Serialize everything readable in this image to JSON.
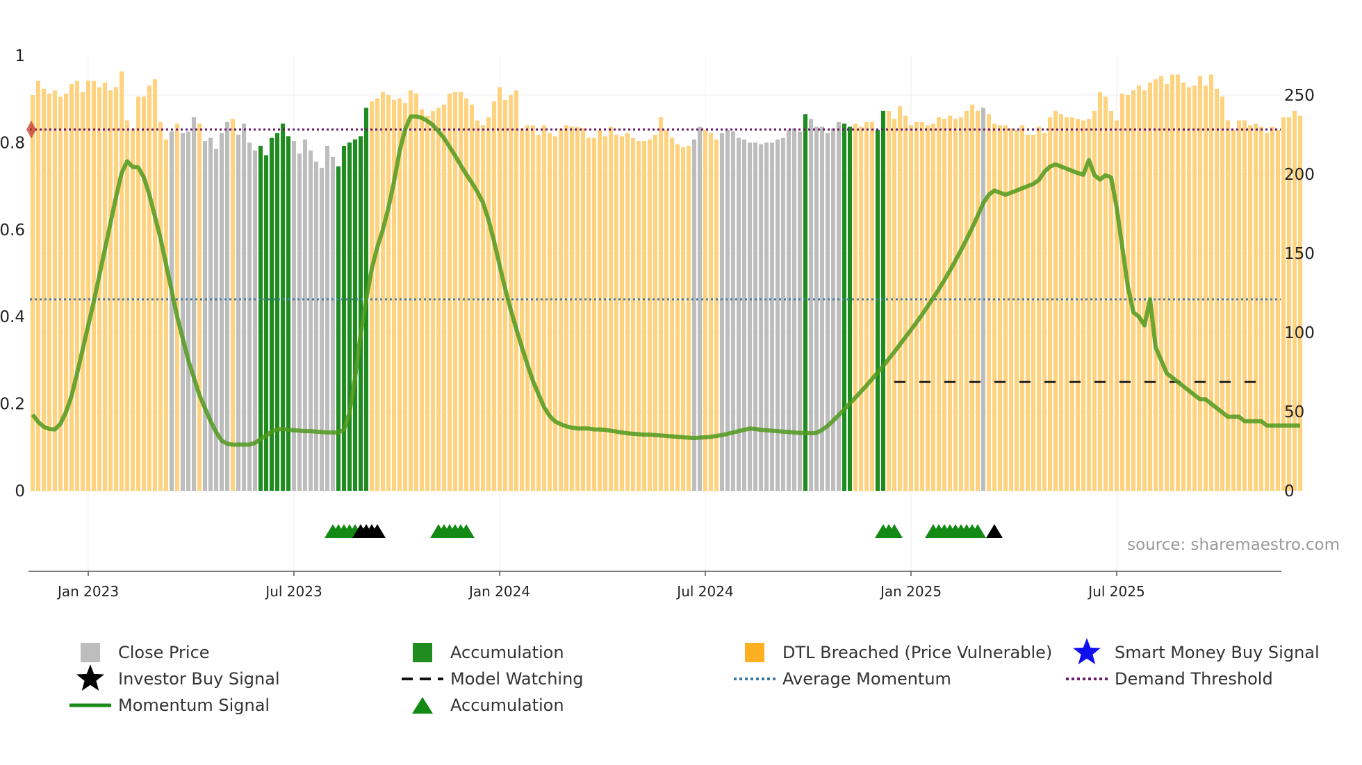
{
  "chart_data": {
    "type": "bar",
    "source": "source: sharemaestro.com",
    "x_ticks": [
      "Jan 2023",
      "Jul 2023",
      "Jan 2024",
      "Jul 2024",
      "Jan 2025",
      "Jul 2025"
    ],
    "x_tick_weeks": [
      10,
      47,
      84,
      121,
      158,
      195
    ],
    "week_count": 225,
    "left_axis": {
      "ticks": [
        "0",
        "0.2",
        "0.4",
        "0.6",
        "0.8",
        "1"
      ],
      "ylim": [
        0,
        1
      ]
    },
    "right_axis": {
      "ticks": [
        "0",
        "50",
        "100",
        "150",
        "200",
        "250"
      ],
      "ylim": [
        0,
        275
      ]
    },
    "demand_threshold": 0.83,
    "average_momentum": 0.44,
    "model_watching": {
      "value": 0.25,
      "start_week": 155,
      "end_week": 221
    },
    "colors": {
      "close": "#bdbdbd",
      "accumulation": "#1e8c1e",
      "dtl": "#ffd27f",
      "momentum": "#4f9a1d",
      "threshold": "#6b1a6b",
      "average": "#4a7ea6",
      "triangle": "#138a13",
      "investor": "#000000",
      "smartmoney": "#1010ee"
    },
    "bars": {
      "note": "one bar per week; h is height on right axis (0-275), c = category: c close price, a accumulation, d DTL breached",
      "h": [
        250,
        259,
        254,
        251,
        253,
        249,
        251,
        257,
        259,
        252,
        259,
        259,
        255,
        258,
        253,
        255,
        265,
        234,
        229,
        249,
        249,
        256,
        260,
        233,
        222,
        227,
        232,
        226,
        227,
        236,
        232,
        221,
        223,
        216,
        226,
        233,
        235,
        225,
        232,
        220,
        215,
        218,
        212,
        223,
        226,
        232,
        224,
        221,
        213,
        222,
        215,
        208,
        204,
        218,
        211,
        205,
        218,
        220,
        222,
        224,
        242,
        246,
        248,
        252,
        250,
        247,
        248,
        245,
        253,
        251,
        241,
        237,
        240,
        242,
        244,
        251,
        252,
        252,
        248,
        244,
        234,
        231,
        236,
        246,
        255,
        247,
        250,
        253,
        229,
        231,
        231,
        225,
        231,
        226,
        224,
        229,
        231,
        230,
        230,
        229,
        223,
        223,
        228,
        224,
        230,
        225,
        224,
        226,
        223,
        221,
        221,
        222,
        225,
        236,
        228,
        223,
        219,
        217,
        218,
        222,
        230,
        228,
        226,
        222,
        226,
        228,
        227,
        223,
        222,
        220,
        220,
        219,
        220,
        220,
        222,
        223,
        228,
        229,
        227,
        238,
        235,
        230,
        230,
        226,
        229,
        233,
        232,
        230,
        232,
        230,
        233,
        233,
        228,
        240,
        240,
        235,
        243,
        237,
        231,
        233,
        233,
        231,
        232,
        236,
        235,
        237,
        235,
        236,
        240,
        244,
        240,
        242,
        238,
        232,
        231,
        231,
        229,
        228,
        231,
        225,
        225,
        230,
        226,
        236,
        240,
        238,
        236,
        236,
        235,
        234,
        235,
        240,
        252,
        249,
        240,
        234,
        251,
        250,
        253,
        256,
        253,
        258,
        260,
        262,
        257,
        263,
        263,
        258,
        255,
        256,
        262,
        256,
        263,
        254,
        249,
        234,
        228,
        234,
        234,
        231,
        232,
        230,
        226,
        230,
        228,
        236,
        236,
        240,
        237
      ],
      "c": "dddddddddddddddddddddddddcdcccdcccccdccccaaaaaaccccccccaaaaaaddddddddddddddddddddddddddddddddddddddddddddddddddddddddddccdddcccccccccccccccaccccccaaddddaadddddddddddddddddcdddddddddddddddddddddddddddddddddddddddddddddd"
    },
    "momentum_signal": {
      "note": "left-axis value per week",
      "values": [
        0.175,
        0.158,
        0.147,
        0.142,
        0.141,
        0.154,
        0.181,
        0.218,
        0.27,
        0.325,
        0.38,
        0.435,
        0.495,
        0.555,
        0.615,
        0.675,
        0.73,
        0.757,
        0.744,
        0.743,
        0.72,
        0.68,
        0.63,
        0.58,
        0.52,
        0.46,
        0.4,
        0.35,
        0.3,
        0.26,
        0.22,
        0.19,
        0.16,
        0.135,
        0.115,
        0.108,
        0.106,
        0.106,
        0.106,
        0.106,
        0.11,
        0.119,
        0.127,
        0.136,
        0.141,
        0.142,
        0.14,
        0.139,
        0.138,
        0.137,
        0.137,
        0.136,
        0.135,
        0.134,
        0.134,
        0.134,
        0.14,
        0.18,
        0.26,
        0.36,
        0.44,
        0.51,
        0.56,
        0.6,
        0.65,
        0.71,
        0.78,
        0.83,
        0.86,
        0.86,
        0.857,
        0.85,
        0.84,
        0.826,
        0.81,
        0.79,
        0.77,
        0.748,
        0.727,
        0.708,
        0.687,
        0.662,
        0.623,
        0.573,
        0.518,
        0.464,
        0.416,
        0.372,
        0.33,
        0.29,
        0.252,
        0.222,
        0.192,
        0.172,
        0.159,
        0.153,
        0.148,
        0.145,
        0.143,
        0.143,
        0.143,
        0.141,
        0.141,
        0.14,
        0.138,
        0.136,
        0.134,
        0.132,
        0.131,
        0.13,
        0.129,
        0.129,
        0.128,
        0.127,
        0.126,
        0.125,
        0.124,
        0.123,
        0.122,
        0.121,
        0.122,
        0.123,
        0.124,
        0.126,
        0.128,
        0.131,
        0.134,
        0.137,
        0.14,
        0.143,
        0.142,
        0.14,
        0.139,
        0.138,
        0.137,
        0.136,
        0.135,
        0.134,
        0.133,
        0.133,
        0.132,
        0.133,
        0.14,
        0.149,
        0.161,
        0.174,
        0.187,
        0.201,
        0.214,
        0.228,
        0.242,
        0.257,
        0.272,
        0.287,
        0.303,
        0.319,
        0.336,
        0.353,
        0.37,
        0.387,
        0.405,
        0.424,
        0.443,
        0.463,
        0.484,
        0.506,
        0.529,
        0.553,
        0.578,
        0.604,
        0.632,
        0.661,
        0.68,
        0.69,
        0.685,
        0.68,
        0.685,
        0.69,
        0.695,
        0.7,
        0.705,
        0.714,
        0.733,
        0.745,
        0.75,
        0.745,
        0.74,
        0.735,
        0.73,
        0.726,
        0.76,
        0.725,
        0.715,
        0.725,
        0.72,
        0.65,
        0.56,
        0.47,
        0.41,
        0.4,
        0.38,
        0.44,
        0.33,
        0.3,
        0.27,
        0.26,
        0.25,
        0.24,
        0.23,
        0.22,
        0.21,
        0.21,
        0.2,
        0.19,
        0.18,
        0.17,
        0.17,
        0.17,
        0.16,
        0.16,
        0.16,
        0.16,
        0.15,
        0.15,
        0.15,
        0.15,
        0.15,
        0.15,
        0.15
      ]
    },
    "accumulation_markers": [
      54,
      55,
      56,
      57,
      58,
      73,
      74,
      75,
      76,
      77,
      78,
      153,
      154,
      155,
      162,
      163,
      164,
      165,
      166,
      167,
      168,
      169,
      170
    ],
    "investor_markers": [
      59,
      60,
      61,
      62,
      173
    ],
    "legend": [
      {
        "label": "Close Price",
        "marker": "gray-square-icon"
      },
      {
        "label": "Accumulation",
        "marker": "green-square-icon"
      },
      {
        "label": "DTL Breached (Price Vulnerable)",
        "marker": "orange-square-icon"
      },
      {
        "label": "Smart Money Buy Signal",
        "marker": "blue-star-icon"
      },
      {
        "label": "Investor Buy Signal",
        "marker": "black-star-icon"
      },
      {
        "label": "Model Watching",
        "marker": "black-dashed-line-icon"
      },
      {
        "label": "Average Momentum",
        "marker": "blue-dotted-line-icon"
      },
      {
        "label": "Demand Threshold",
        "marker": "purple-dotted-line-icon"
      },
      {
        "label": "Momentum Signal",
        "marker": "green-line-icon"
      },
      {
        "label": "Accumulation",
        "marker": "green-triangle-icon"
      }
    ]
  }
}
